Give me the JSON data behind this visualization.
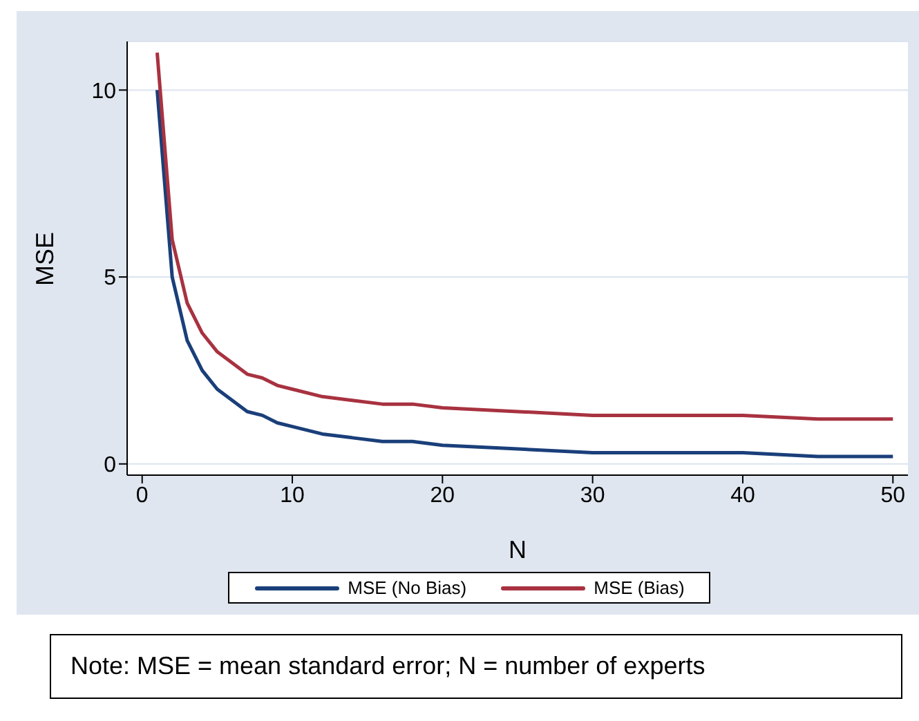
{
  "chart_data": {
    "type": "line",
    "xlabel": "N",
    "ylabel": "MSE",
    "x": [
      1,
      2,
      3,
      4,
      5,
      6,
      7,
      8,
      9,
      10,
      12,
      14,
      16,
      18,
      20,
      25,
      30,
      35,
      40,
      45,
      50
    ],
    "series": [
      {
        "name": "MSE (No Bias)",
        "color": "#1a3f7a",
        "values": [
          10,
          5,
          3.3,
          2.5,
          2,
          1.7,
          1.4,
          1.3,
          1.1,
          1,
          0.8,
          0.7,
          0.6,
          0.6,
          0.5,
          0.4,
          0.3,
          0.3,
          0.3,
          0.2,
          0.2
        ]
      },
      {
        "name": "MSE (Bias)",
        "color": "#a83240",
        "values": [
          11,
          6,
          4.3,
          3.5,
          3,
          2.7,
          2.4,
          2.3,
          2.1,
          2,
          1.8,
          1.7,
          1.6,
          1.6,
          1.5,
          1.4,
          1.3,
          1.3,
          1.3,
          1.2,
          1.2
        ]
      }
    ],
    "xlim": [
      -1,
      51
    ],
    "xticks": [
      0,
      10,
      20,
      30,
      40,
      50
    ],
    "ylim": [
      -0.3,
      11.3
    ],
    "yticks": [
      0,
      5,
      10
    ],
    "grid": "y",
    "legend": "bottom",
    "marker": "none",
    "line_style": "solid",
    "annotations": [
      "Note: MSE = mean standard error; N = number of experts"
    ]
  }
}
